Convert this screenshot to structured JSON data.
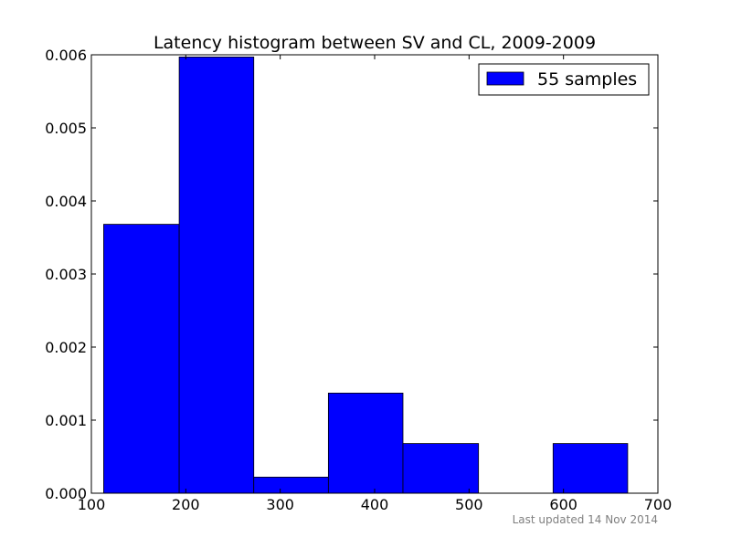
{
  "chart_data": {
    "type": "bar",
    "title": "Latency histogram between SV and CL, 2009-2009",
    "xlabel": "",
    "ylabel": "",
    "xlim": [
      100,
      700
    ],
    "ylim": [
      0,
      0.006
    ],
    "xticks": [
      100,
      200,
      300,
      400,
      500,
      600,
      700
    ],
    "xtick_labels": [
      "100",
      "200",
      "300",
      "400",
      "500",
      "600",
      "700"
    ],
    "yticks": [
      0,
      0.001,
      0.002,
      0.003,
      0.004,
      0.005,
      0.006
    ],
    "ytick_labels": [
      "0.000",
      "0.001",
      "0.002",
      "0.003",
      "0.004",
      "0.005",
      "0.006"
    ],
    "grid": false,
    "legend_position": "top-right",
    "bin_edges": [
      113,
      193,
      272,
      351,
      430,
      510,
      589,
      668
    ],
    "series": [
      {
        "name": "55 samples",
        "color": "#0000ff",
        "values": [
          0.00368,
          0.00597,
          0.00022,
          0.00137,
          0.00068,
          0,
          0.00068
        ]
      }
    ]
  },
  "footer": {
    "updated": "Last updated 14 Nov 2014"
  }
}
